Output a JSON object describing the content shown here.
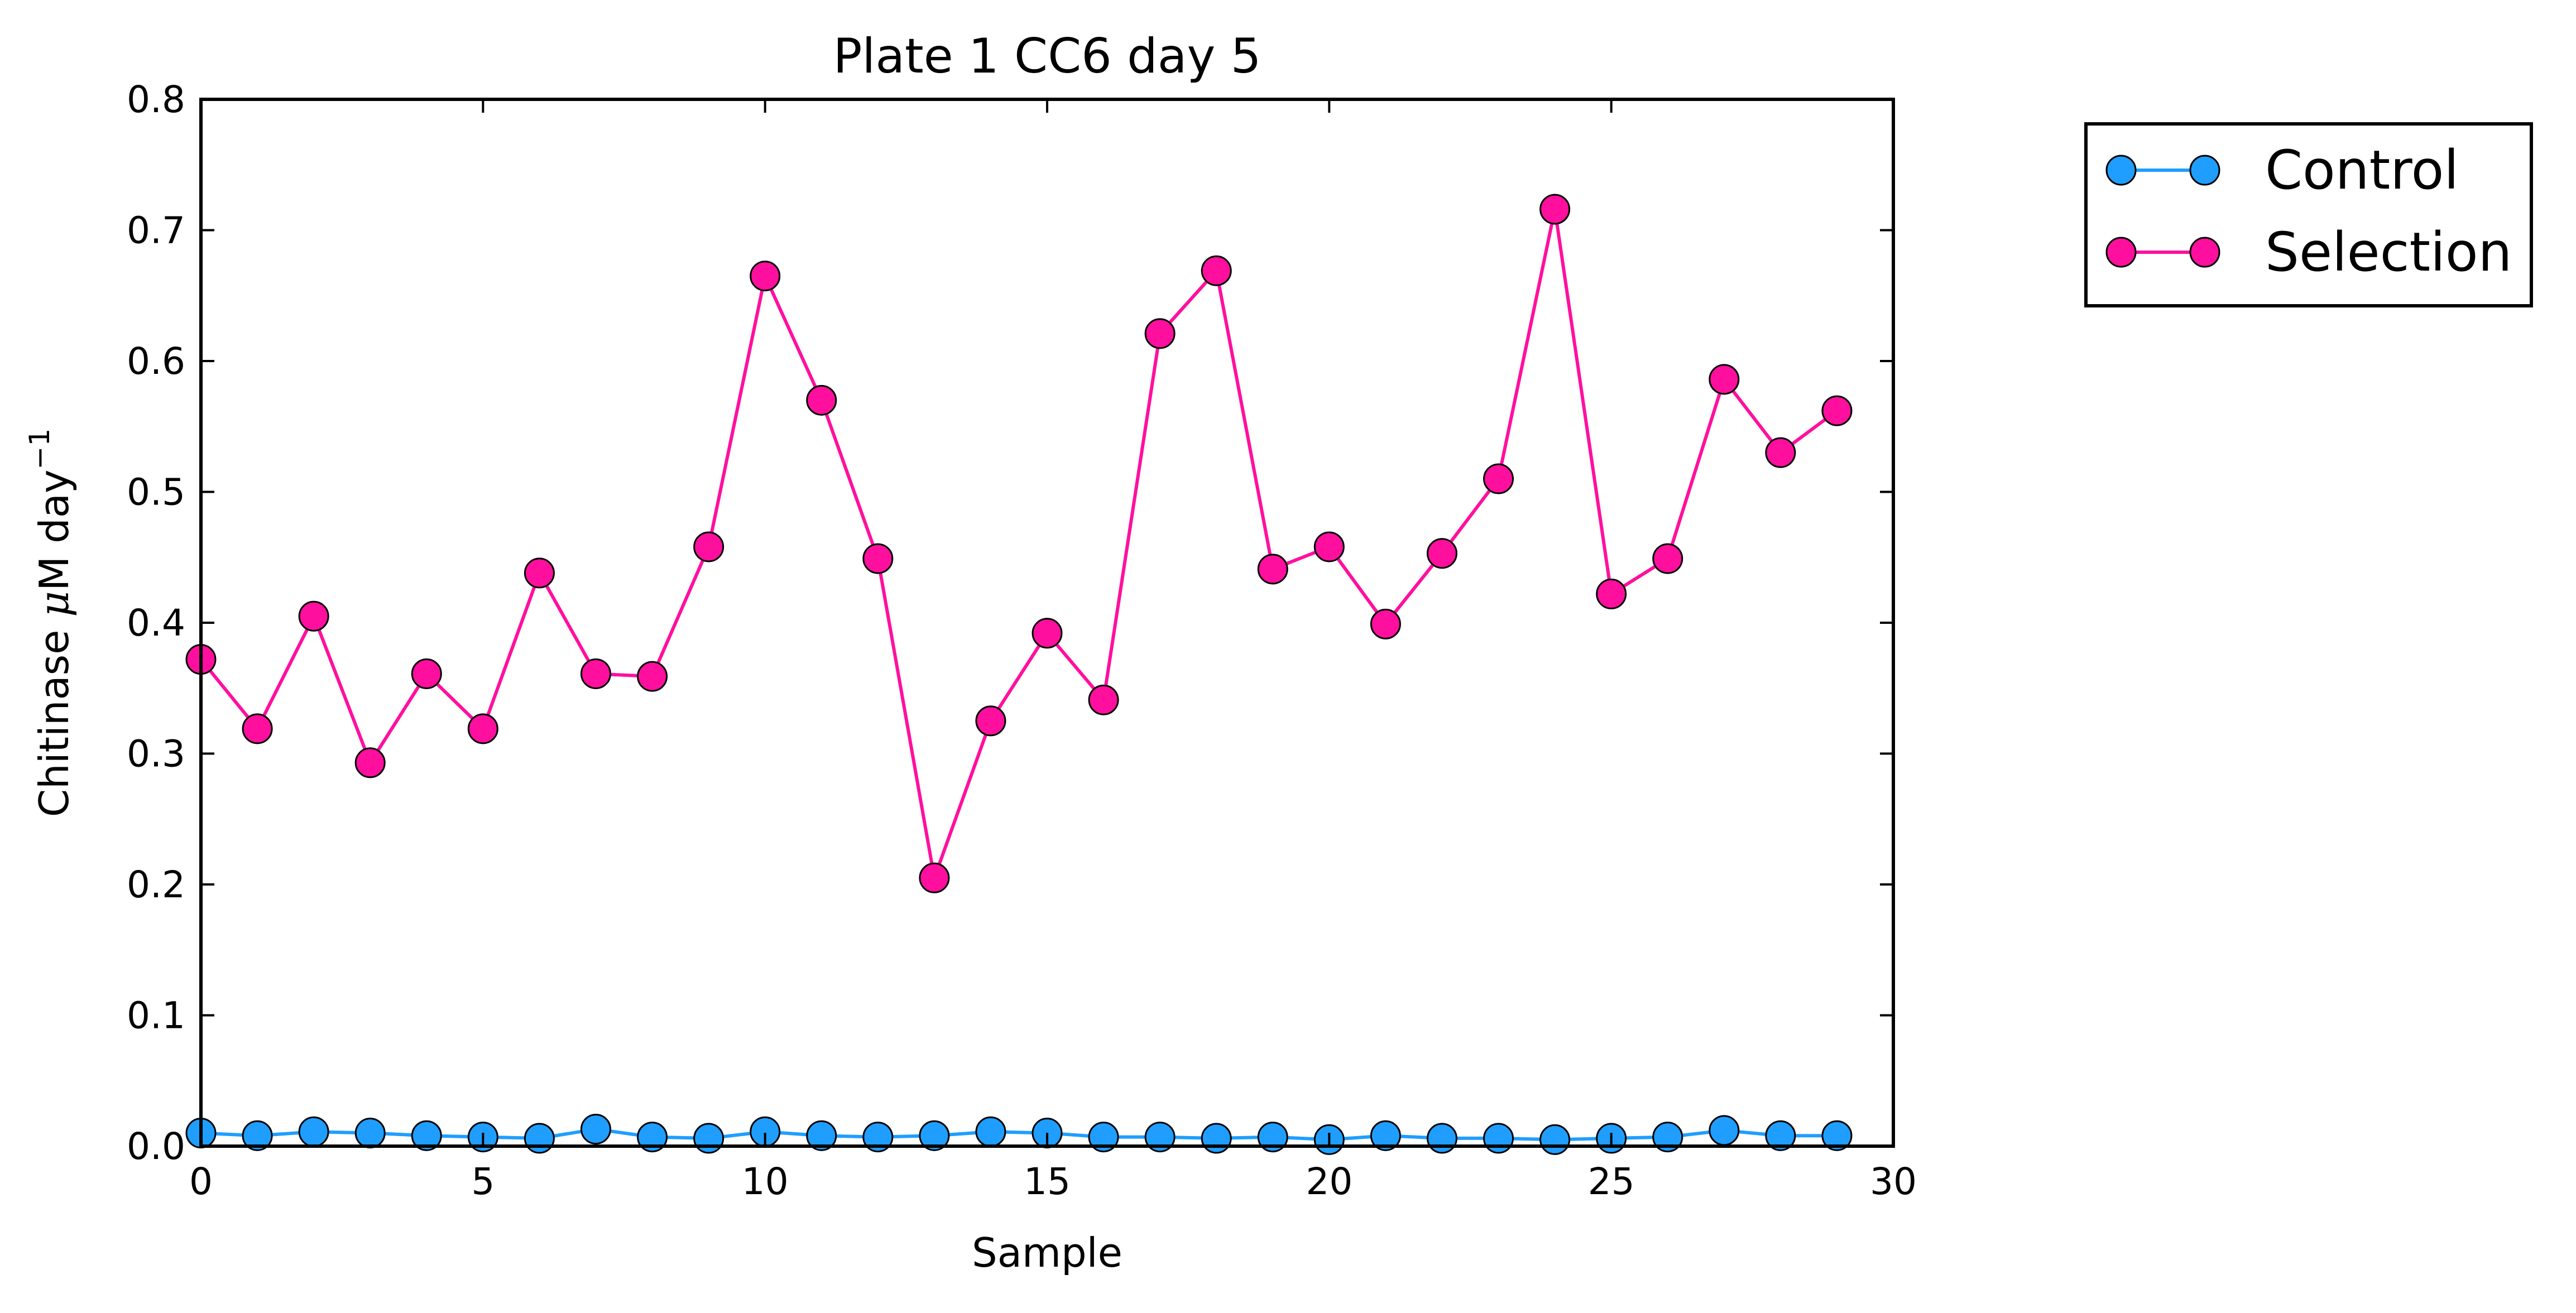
{
  "chart_data": {
    "type": "line",
    "title": "Plate 1 CC6 day 5",
    "xlabel": "Sample",
    "ylabel_main": "Chitinase ",
    "ylabel_mu": "μ",
    "ylabel_rest": "M day",
    "ylabel_sup": "−1",
    "xlim": [
      0,
      30
    ],
    "ylim": [
      0,
      0.8
    ],
    "xticks": [
      0,
      5,
      10,
      15,
      20,
      25,
      30
    ],
    "xtick_labels": [
      "0",
      "5",
      "10",
      "15",
      "20",
      "25",
      "30"
    ],
    "yticks": [
      0.0,
      0.1,
      0.2,
      0.3,
      0.4,
      0.5,
      0.6,
      0.7,
      0.8
    ],
    "ytick_labels": [
      "0.0",
      "0.1",
      "0.2",
      "0.3",
      "0.4",
      "0.5",
      "0.6",
      "0.7",
      "0.8"
    ],
    "grid": false,
    "legend_position": "outside-top-right",
    "x": [
      0,
      1,
      2,
      3,
      4,
      5,
      6,
      7,
      8,
      9,
      10,
      11,
      12,
      13,
      14,
      15,
      16,
      17,
      18,
      19,
      20,
      21,
      22,
      23,
      24,
      25,
      26,
      27,
      28,
      29
    ],
    "series": [
      {
        "name": "Control",
        "color": "#1f9eff",
        "values": [
          0.01,
          0.008,
          0.011,
          0.01,
          0.008,
          0.007,
          0.006,
          0.013,
          0.007,
          0.006,
          0.011,
          0.008,
          0.007,
          0.008,
          0.011,
          0.01,
          0.007,
          0.007,
          0.006,
          0.007,
          0.005,
          0.008,
          0.006,
          0.006,
          0.005,
          0.006,
          0.007,
          0.012,
          0.008,
          0.008
        ]
      },
      {
        "name": "Selection",
        "color": "#ff0f9e",
        "values": [
          0.372,
          0.319,
          0.405,
          0.293,
          0.361,
          0.319,
          0.438,
          0.361,
          0.359,
          0.458,
          0.665,
          0.57,
          0.449,
          0.205,
          0.325,
          0.392,
          0.341,
          0.621,
          0.669,
          0.441,
          0.458,
          0.399,
          0.453,
          0.51,
          0.716,
          0.422,
          0.449,
          0.586,
          0.53,
          0.562
        ]
      }
    ]
  }
}
